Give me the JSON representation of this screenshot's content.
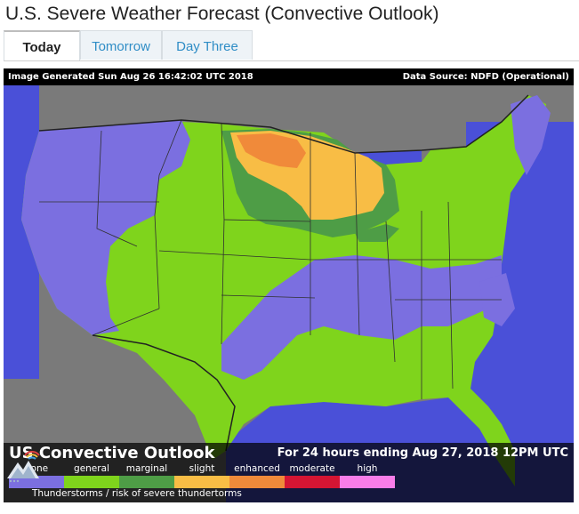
{
  "page_title": "U.S. Severe Weather Forecast (Convective Outlook)",
  "tabs": [
    {
      "label": "Today",
      "active": true
    },
    {
      "label": "Tomorrow",
      "active": false
    },
    {
      "label": "Day Three",
      "active": false
    }
  ],
  "map": {
    "image_generated": "Image Generated Sun Aug 26 16:42:02 UTC 2018",
    "data_source": "Data Source: NDFD (Operational)",
    "legend": {
      "title": "US Convective Outlook",
      "period": "For 24 hours ending Aug 27, 2018 12PM UTC",
      "note": "Thunderstorms / risk of severe thundertorms",
      "categories": [
        {
          "label": "none",
          "color": "#7b6fe0"
        },
        {
          "label": "general",
          "color": "#7fd41c"
        },
        {
          "label": "marginal",
          "color": "#4e9d46"
        },
        {
          "label": "slight",
          "color": "#f8bd45"
        },
        {
          "label": "enhanced",
          "color": "#f08a3a"
        },
        {
          "label": "moderate",
          "color": "#d51533"
        },
        {
          "label": "high",
          "color": "#f97de9"
        }
      ]
    },
    "colors": {
      "background_land": "#7a7a7a",
      "water": "#4a50d8",
      "none": "#7b6fe0",
      "general": "#7fd41c",
      "marginal": "#4e9d46",
      "slight": "#f8bd45",
      "enhanced": "#f08a3a"
    }
  }
}
